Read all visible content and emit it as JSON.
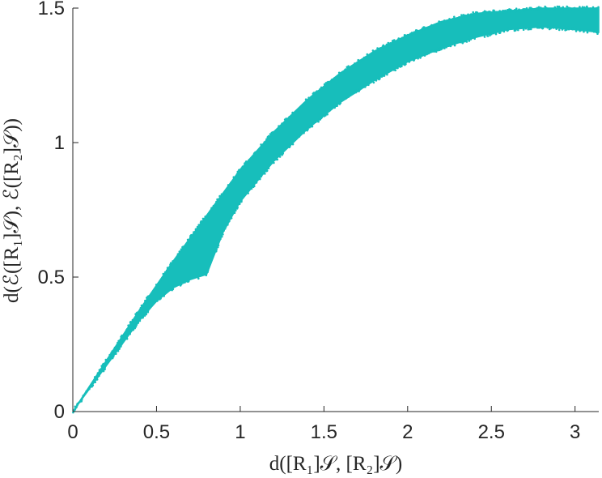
{
  "chart_data": {
    "type": "scatter",
    "xlabel": "d([R₁]𝒮, [R₂]𝒮)",
    "ylabel": "d(ℰ([R₁]𝒮), ℰ([R₂]𝒮))",
    "xlim": [
      0,
      3.1416
    ],
    "ylim": [
      0,
      1.5
    ],
    "x_ticks": [
      {
        "value": 0,
        "label": "0"
      },
      {
        "value": 0.5,
        "label": "0.5"
      },
      {
        "value": 1,
        "label": "1"
      },
      {
        "value": 1.5,
        "label": "1.5"
      },
      {
        "value": 2,
        "label": "2"
      },
      {
        "value": 2.5,
        "label": "2.5"
      },
      {
        "value": 3,
        "label": "3"
      }
    ],
    "y_ticks": [
      {
        "value": 0,
        "label": "0"
      },
      {
        "value": 0.5,
        "label": "0.5"
      },
      {
        "value": 1,
        "label": "1"
      },
      {
        "value": 1.5,
        "label": "1.5"
      }
    ],
    "grid": false,
    "legend": "none",
    "series": [
      {
        "color": "#17bebb",
        "marker": "dense point cloud",
        "upper_envelope": [
          [
            0,
            0
          ],
          [
            0.2,
            0.19
          ],
          [
            0.4,
            0.38
          ],
          [
            0.6,
            0.56
          ],
          [
            0.8,
            0.73
          ],
          [
            1.0,
            0.9
          ],
          [
            1.2,
            1.04
          ],
          [
            1.4,
            1.16
          ],
          [
            1.6,
            1.26
          ],
          [
            1.8,
            1.34
          ],
          [
            2.0,
            1.4
          ],
          [
            2.2,
            1.45
          ],
          [
            2.4,
            1.48
          ],
          [
            2.6,
            1.49
          ],
          [
            2.8,
            1.5
          ],
          [
            3.0,
            1.5
          ],
          [
            3.1416,
            1.5
          ]
        ],
        "lower_envelope": [
          [
            0,
            0
          ],
          [
            0.2,
            0.17
          ],
          [
            0.4,
            0.34
          ],
          [
            0.5,
            0.41
          ],
          [
            0.6,
            0.46
          ],
          [
            0.7,
            0.49
          ],
          [
            0.8,
            0.51
          ],
          [
            0.9,
            0.67
          ],
          [
            1.0,
            0.78
          ],
          [
            1.2,
            0.93
          ],
          [
            1.4,
            1.05
          ],
          [
            1.6,
            1.15
          ],
          [
            1.8,
            1.23
          ],
          [
            2.0,
            1.3
          ],
          [
            2.2,
            1.35
          ],
          [
            2.4,
            1.39
          ],
          [
            2.6,
            1.42
          ],
          [
            2.8,
            1.43
          ],
          [
            3.0,
            1.42
          ],
          [
            3.1416,
            1.41
          ]
        ]
      }
    ]
  }
}
